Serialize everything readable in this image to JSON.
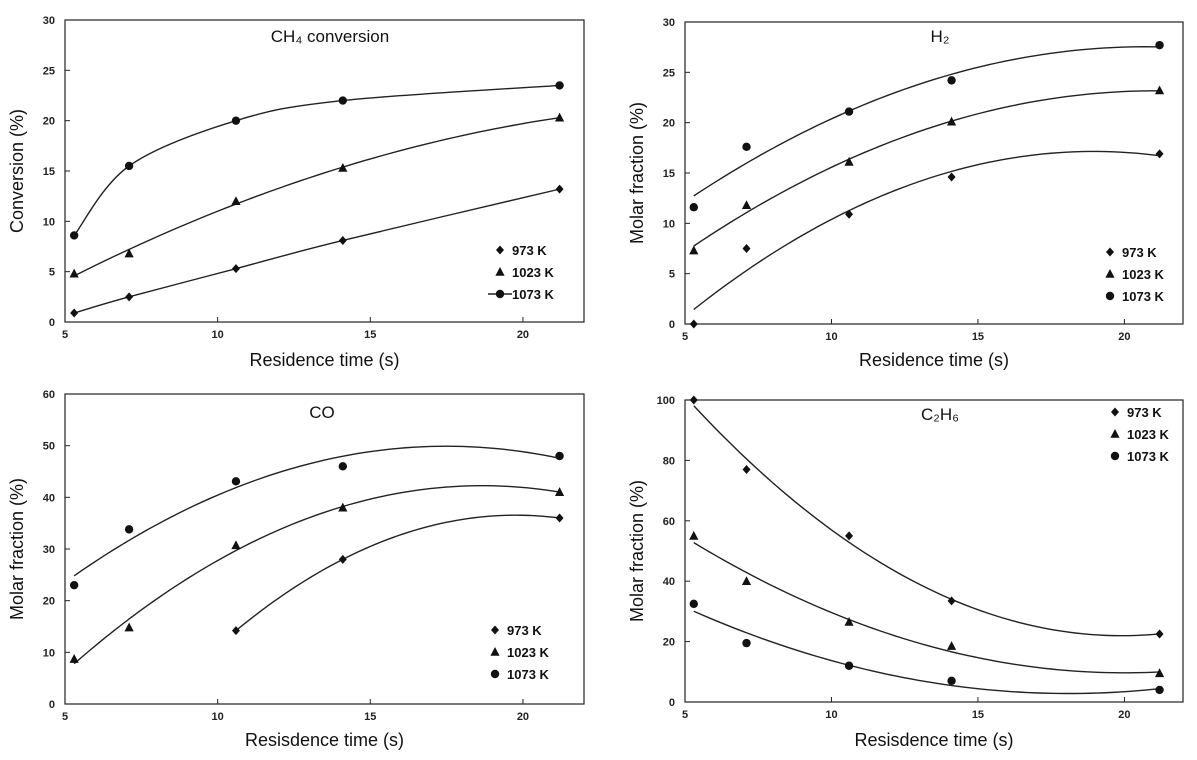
{
  "chart_data": [
    {
      "type": "scatter",
      "title": "CH₄ conversion",
      "xlabel": "Residence time (s)",
      "ylabel": "Conversion (%)",
      "xlim": [
        5,
        22
      ],
      "ylim": [
        0,
        30
      ],
      "xticks": [
        5,
        10,
        15,
        20
      ],
      "yticks": [
        0,
        5,
        10,
        15,
        20,
        25,
        30
      ],
      "legend_position": "bottom-right",
      "series": [
        {
          "name": "973 K",
          "marker": "diamond",
          "x": [
            5.3,
            7.1,
            10.6,
            14.1,
            21.2
          ],
          "y": [
            0.9,
            2.5,
            5.3,
            8.1,
            13.2
          ]
        },
        {
          "name": "1023 K",
          "marker": "triangle",
          "x": [
            5.3,
            7.1,
            10.6,
            14.1,
            21.2
          ],
          "y": [
            4.8,
            6.8,
            12.0,
            15.3,
            20.3
          ]
        },
        {
          "name": "1073 K",
          "marker": "circle",
          "x": [
            5.3,
            7.1,
            10.6,
            14.1,
            21.2
          ],
          "y": [
            8.6,
            15.5,
            20.0,
            22.0,
            23.5
          ]
        }
      ]
    },
    {
      "type": "scatter",
      "title": "H₂",
      "xlabel": "Residence time (s)",
      "ylabel": "Molar fraction (%)",
      "xlim": [
        5,
        22
      ],
      "ylim": [
        0,
        30
      ],
      "xticks": [
        5,
        10,
        15,
        20
      ],
      "yticks": [
        0,
        5,
        10,
        15,
        20,
        25,
        30
      ],
      "legend_position": "bottom-right",
      "series": [
        {
          "name": "973 K",
          "marker": "diamond",
          "x": [
            5.3,
            7.1,
            10.6,
            14.1,
            21.2
          ],
          "y": [
            0.0,
            7.5,
            10.9,
            14.6,
            16.9
          ]
        },
        {
          "name": "1023 K",
          "marker": "triangle",
          "x": [
            5.3,
            7.1,
            10.6,
            14.1,
            21.2
          ],
          "y": [
            7.3,
            11.8,
            16.1,
            20.1,
            23.2
          ]
        },
        {
          "name": "1073 K",
          "marker": "circle",
          "x": [
            5.3,
            7.1,
            10.6,
            14.1,
            21.2
          ],
          "y": [
            11.6,
            17.6,
            21.1,
            24.2,
            27.7
          ]
        }
      ]
    },
    {
      "type": "scatter",
      "title": "CO",
      "xlabel": "Resisdence time (s)",
      "ylabel": "Molar fraction (%)",
      "xlim": [
        5,
        22
      ],
      "ylim": [
        0,
        60
      ],
      "xticks": [
        5,
        10,
        15,
        20
      ],
      "yticks": [
        0,
        10,
        20,
        30,
        40,
        50,
        60
      ],
      "legend_position": "bottom-right",
      "series": [
        {
          "name": "973 K",
          "marker": "diamond",
          "x": [
            10.6,
            14.1,
            21.2
          ],
          "y": [
            14.2,
            28.0,
            36.0
          ]
        },
        {
          "name": "1023 K",
          "marker": "triangle",
          "x": [
            5.3,
            7.1,
            10.6,
            14.1,
            21.2
          ],
          "y": [
            8.7,
            14.8,
            30.7,
            38.0,
            41.0
          ]
        },
        {
          "name": "1073 K",
          "marker": "circle",
          "x": [
            5.3,
            7.1,
            10.6,
            14.1,
            21.2
          ],
          "y": [
            23.0,
            33.8,
            43.1,
            46.0,
            48.0
          ]
        }
      ]
    },
    {
      "type": "scatter",
      "title": "C₂H₆",
      "xlabel": "Resisdence time (s)",
      "ylabel": "Molar fraction (%)",
      "xlim": [
        5,
        22
      ],
      "ylim": [
        0,
        100
      ],
      "xticks": [
        5,
        10,
        15,
        20
      ],
      "yticks": [
        0,
        20,
        40,
        60,
        80,
        100
      ],
      "legend_position": "top-right",
      "series": [
        {
          "name": "973 K",
          "marker": "diamond",
          "x": [
            5.3,
            7.1,
            10.6,
            14.1,
            21.2
          ],
          "y": [
            100.0,
            77.0,
            55.0,
            33.5,
            22.5
          ]
        },
        {
          "name": "1023 K",
          "marker": "triangle",
          "x": [
            5.3,
            7.1,
            10.6,
            14.1,
            21.2
          ],
          "y": [
            55.0,
            40.0,
            26.5,
            18.5,
            9.5
          ]
        },
        {
          "name": "1073 K",
          "marker": "circle",
          "x": [
            5.3,
            7.1,
            10.6,
            14.1,
            21.2
          ],
          "y": [
            32.5,
            19.5,
            12.0,
            7.0,
            4.0
          ]
        }
      ]
    }
  ]
}
